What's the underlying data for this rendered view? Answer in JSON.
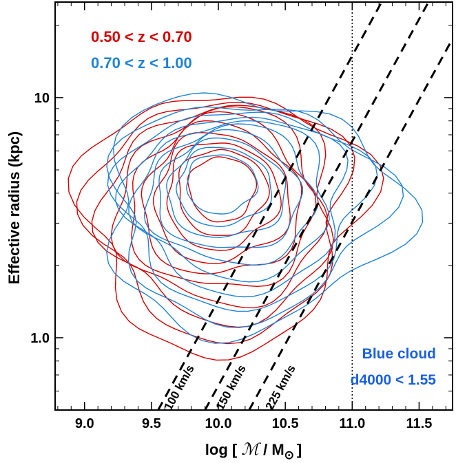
{
  "chart_data": {
    "type": "contour",
    "xlabel_prefix": "log [ ",
    "xlabel_script": "ℳ",
    "xlabel_mid": " / M",
    "xlabel_sub": "⊙",
    "xlabel_suffix": "]",
    "ylabel": "Effective radius (kpc)",
    "xlim": [
      8.78,
      11.75
    ],
    "ylim_kpc": [
      0.5,
      25
    ],
    "y_scale": "log",
    "x_ticks": [
      9.0,
      9.5,
      10.0,
      10.5,
      11.0,
      11.5
    ],
    "x_tick_labels": [
      "9.0",
      "9.5",
      "10.0",
      "10.5",
      "11.0",
      "11.5"
    ],
    "y_ticks": [
      1.0,
      10
    ],
    "y_tick_labels": [
      "1.0",
      "10"
    ],
    "series": [
      {
        "name": "0.50 < z < 0.70",
        "color": "#d40000",
        "center": [
          10.03,
          4.3
        ],
        "levels": 10,
        "outer_extent_x": [
          8.92,
          11.05
        ],
        "outer_extent_kpc": [
          0.88,
          11.5
        ]
      },
      {
        "name": "0.70 < z < 1.00",
        "color": "#1f82d6",
        "center": [
          10.0,
          4.5
        ],
        "levels": 10,
        "outer_extent_x": [
          9.05,
          11.3
        ],
        "outer_extent_kpc": [
          1.05,
          11.0
        ]
      }
    ],
    "reference_lines": [
      {
        "label": "100 km/s",
        "style": "dashed",
        "color": "#000000",
        "points": [
          [
            9.55,
            0.5
          ],
          [
            11.22,
            25
          ]
        ]
      },
      {
        "label": "150 km/s",
        "style": "dashed",
        "color": "#000000",
        "points": [
          [
            9.9,
            0.5
          ],
          [
            11.57,
            25
          ]
        ]
      },
      {
        "label": "225 km/s",
        "style": "dashed",
        "color": "#000000",
        "points": [
          [
            10.23,
            0.5
          ],
          [
            11.9,
            25
          ]
        ]
      }
    ],
    "vertical_line": {
      "x": 11.0,
      "style": "dotted",
      "color": "#000000"
    },
    "annotations": [
      {
        "text": "Blue cloud",
        "color": "#1a5fe0"
      },
      {
        "text": "d4000 < 1.55",
        "color": "#1a5fe0"
      }
    ],
    "grid": false,
    "legend": "top-left"
  }
}
